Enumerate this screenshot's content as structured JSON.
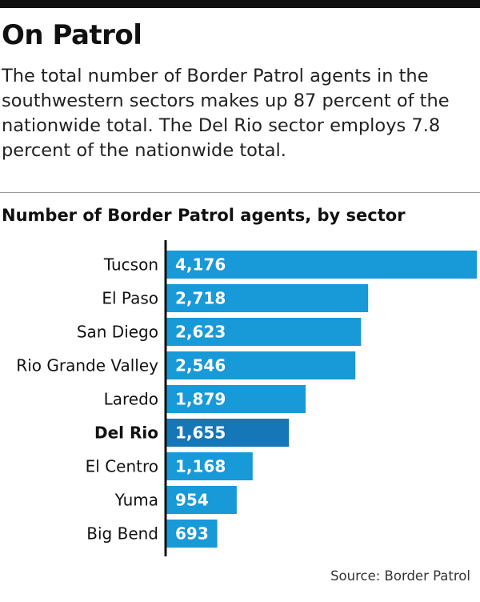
{
  "header": {
    "title": "On Patrol",
    "dek": "The total number of Border Patrol agents in the southwestern sectors makes up 87 percent of the nationwide total. The Del Rio sector employs 7.8 percent of the nationwide total."
  },
  "chart_data": {
    "type": "bar",
    "orientation": "horizontal",
    "title": "Number of Border Patrol agents, by sector",
    "categories": [
      "Tucson",
      "El Paso",
      "San Diego",
      "Rio Grande Valley",
      "Laredo",
      "Del Rio",
      "El Centro",
      "Yuma",
      "Big Bend"
    ],
    "values": [
      4176,
      2718,
      2623,
      2546,
      1879,
      1655,
      1168,
      954,
      693
    ],
    "value_labels": [
      "4,176",
      "2,718",
      "2,623",
      "2,546",
      "1,879",
      "1,655",
      "1,168",
      "954",
      "693"
    ],
    "highlight": "Del Rio",
    "xlim": [
      0,
      4176
    ],
    "grid": false,
    "colors": {
      "bar": "#1899d8",
      "highlight": "#1576b8",
      "axis": "#111111",
      "value_label": "#ffffff"
    }
  },
  "footer": {
    "source": "Source: Border Patrol"
  }
}
